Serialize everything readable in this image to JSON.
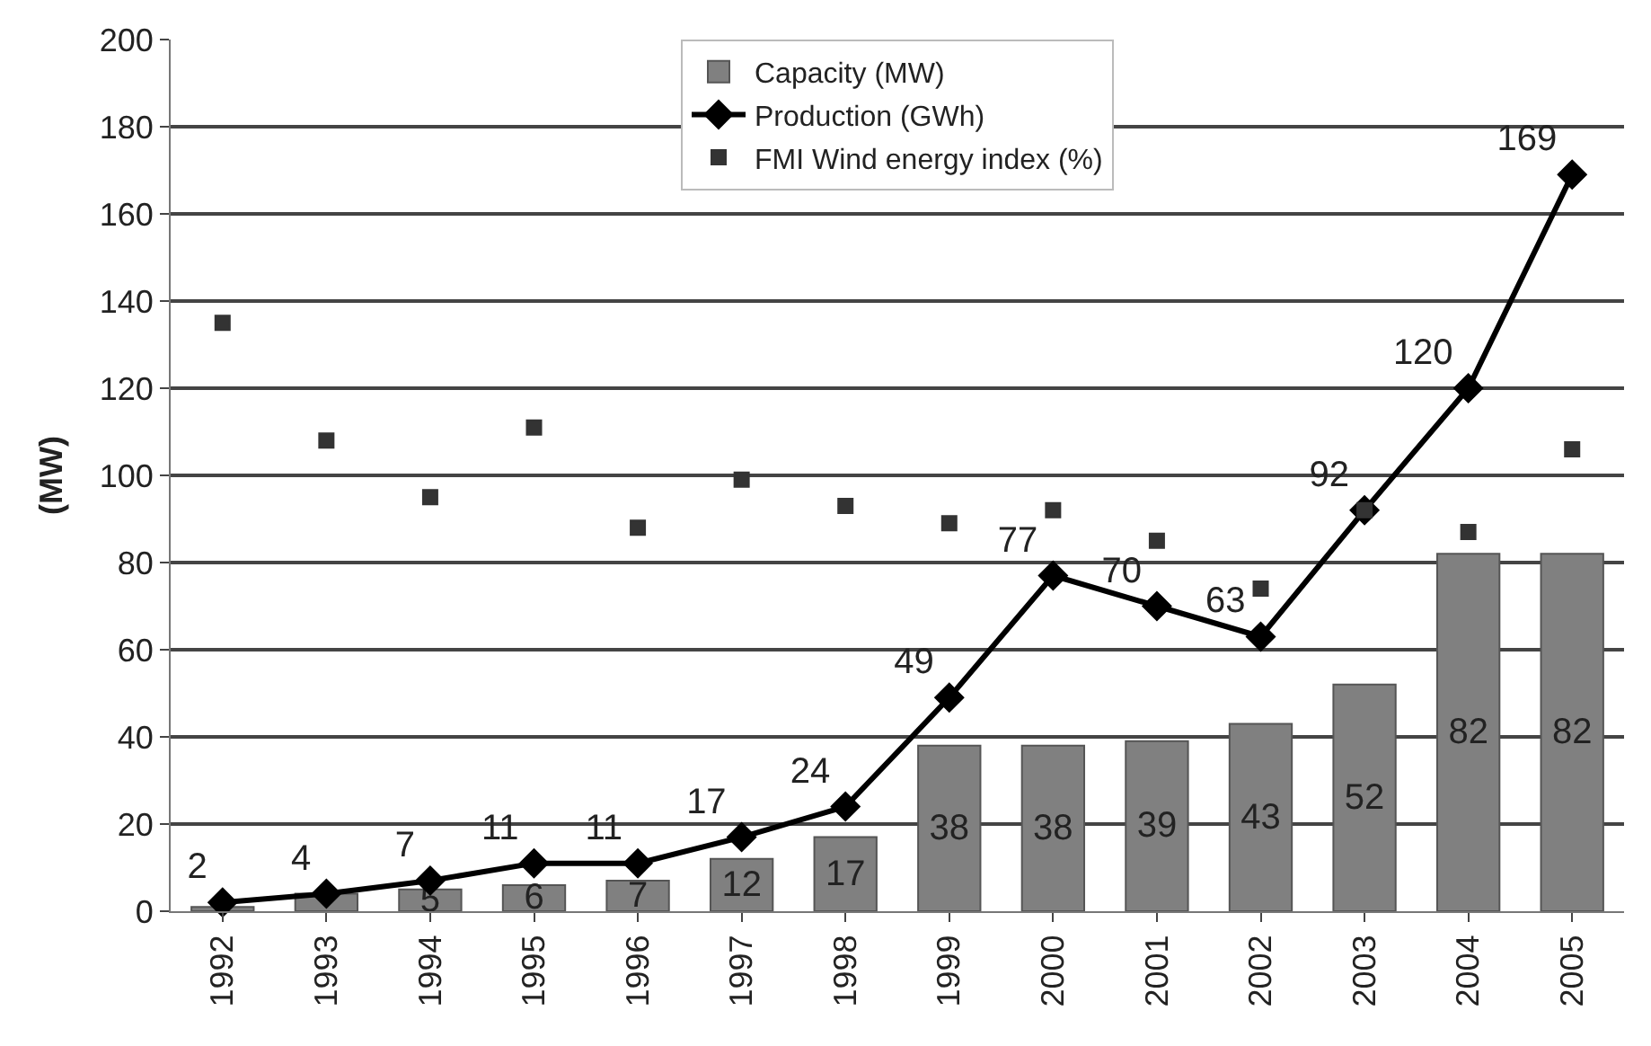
{
  "chart_data": {
    "type": "bar",
    "ylabel": "(MW)",
    "categories": [
      "1992",
      "1993",
      "1994",
      "1995",
      "1996",
      "1997",
      "1998",
      "1999",
      "2000",
      "2001",
      "2002",
      "2003",
      "2004",
      "2005"
    ],
    "series": [
      {
        "name": "Capacity (MW)",
        "color": "#808080",
        "values": [
          1,
          4,
          5,
          6,
          7,
          12,
          17,
          38,
          38,
          39,
          43,
          52,
          82,
          82
        ],
        "value_labels": [
          null,
          null,
          "5",
          "6",
          "7",
          "12",
          "17",
          "38",
          "38",
          "39",
          "43",
          "52",
          "82",
          "82"
        ]
      },
      {
        "name": "Production (GWh)",
        "type": "line",
        "color": "#000000",
        "marker": "diamond",
        "line_style": "solid",
        "values": [
          2,
          4,
          7,
          11,
          11,
          17,
          24,
          49,
          77,
          70,
          63,
          92,
          120,
          169
        ],
        "value_labels": [
          "2",
          "4",
          "7",
          "11",
          "11",
          "17",
          "24",
          "49",
          "77",
          "70",
          "63",
          "92",
          "120",
          "169"
        ]
      },
      {
        "name": "FMI Wind energy index (%)",
        "type": "scatter",
        "color": "#333333",
        "marker": "square",
        "values": [
          135,
          108,
          95,
          111,
          88,
          99,
          93,
          89,
          92,
          85,
          74,
          92,
          87,
          106
        ]
      }
    ],
    "ylim": [
      0,
      200
    ],
    "yticks": [
      0,
      20,
      40,
      60,
      80,
      100,
      120,
      140,
      160,
      180,
      200
    ],
    "grid": "y",
    "legend": "top"
  }
}
